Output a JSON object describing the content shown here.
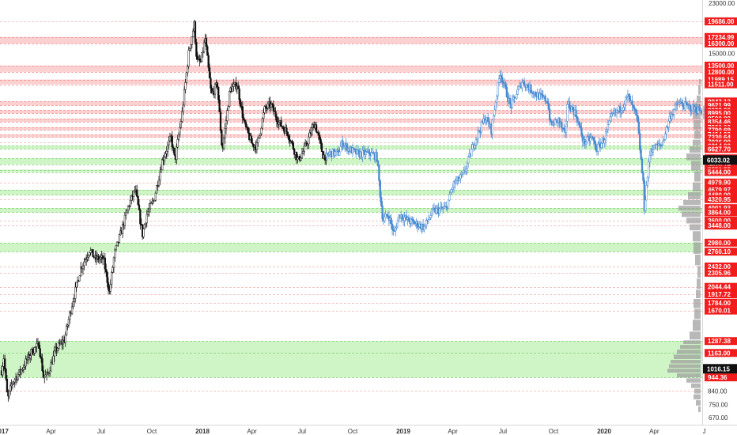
{
  "chart_data": {
    "type": "candlestick",
    "y_scale": "log",
    "ylim": [
      640,
      23500
    ],
    "x_range": [
      "2017-01-01",
      "2020-07-06"
    ],
    "x_ticks": [
      {
        "date": "2017-01-01",
        "label": "2017",
        "bold": true
      },
      {
        "date": "2017-04-01",
        "label": "Apr",
        "bold": false
      },
      {
        "date": "2017-07-01",
        "label": "Jul",
        "bold": false
      },
      {
        "date": "2017-10-01",
        "label": "Oct",
        "bold": false
      },
      {
        "date": "2018-01-01",
        "label": "2018",
        "bold": true
      },
      {
        "date": "2018-04-01",
        "label": "Apr",
        "bold": false
      },
      {
        "date": "2018-07-01",
        "label": "Jul",
        "bold": false
      },
      {
        "date": "2018-10-01",
        "label": "Oct",
        "bold": false
      },
      {
        "date": "2019-01-01",
        "label": "2019",
        "bold": true
      },
      {
        "date": "2019-04-01",
        "label": "Apr",
        "bold": false
      },
      {
        "date": "2019-07-01",
        "label": "Jul",
        "bold": false
      },
      {
        "date": "2019-10-01",
        "label": "Oct",
        "bold": false
      },
      {
        "date": "2020-01-01",
        "label": "2020",
        "bold": true
      },
      {
        "date": "2020-04-01",
        "label": "Apr",
        "bold": false
      },
      {
        "date": "2020-07-01",
        "label": "J",
        "bold": false
      }
    ],
    "y_ticks": [
      23000,
      15000,
      750,
      670
    ],
    "y_tick_labels": [
      "23000.00",
      "15000.00",
      "750.00",
      "670.00"
    ],
    "price_levels": [
      19686,
      17234.99,
      16300,
      13500,
      12800,
      11989.15,
      11511,
      9943.12,
      9621.99,
      9222,
      8995,
      8590,
      8354.46,
      7980,
      7790.69,
      7494.99,
      7330.64,
      7026.9,
      6814,
      6627.7,
      6120,
      5818.14,
      5556.55,
      5444,
      4979.9,
      4679.97,
      4480,
      4320.95,
      4001.93,
      3864,
      3600,
      3448,
      2980,
      2760.1,
      2432,
      2305.96,
      2044.44,
      1917.72,
      1784,
      1670.01,
      1287.38,
      1163,
      944.36,
      840
    ],
    "level_labels": [
      "19686.00",
      "17234.99",
      "16300.00",
      "13500.00",
      "12800.00",
      "11989.15",
      "11511.00",
      "9943.12",
      "9621.99",
      "9222.00",
      "8995.00",
      "8590.00",
      "8354.46",
      "7980.00",
      "7790.69",
      "7494.99",
      "7330.64",
      "7026.90",
      "6814.00",
      "6627.70",
      "6120.00",
      "5818.14",
      "5556.55",
      "5444.00",
      "4979.90",
      "4679.97",
      "4480.00",
      "4320.95",
      "4001.93",
      "3864.00",
      "3600.00",
      "3448.00",
      "2980.00",
      "2760.10",
      "2432.00",
      "2305.96",
      "2044.44",
      "1917.72",
      "1784.00",
      "1670.01",
      "1287.38",
      "1163.00",
      "944.36",
      "840.00"
    ],
    "level_label_colors": [
      "red",
      "red",
      "red",
      "red",
      "red",
      "red",
      "red",
      "red",
      "red",
      "red",
      "red",
      "red",
      "red",
      "red",
      "red",
      "red",
      "red",
      "red",
      "red",
      "red",
      "red",
      "red",
      "red",
      "red",
      "red",
      "red",
      "red",
      "red",
      "red",
      "red",
      "red",
      "red",
      "red",
      "red",
      "red",
      "red",
      "red",
      "red",
      "red",
      "red",
      "red",
      "red",
      "red",
      "none"
    ],
    "highlighted_levels": [
      {
        "value": 6033.02,
        "label": "6033.02"
      },
      {
        "value": 1016.15,
        "label": "1016.15"
      }
    ],
    "resistance_zones": [
      [
        16300,
        17234.99
      ],
      [
        12800,
        13500
      ],
      [
        11511,
        11989.15
      ],
      [
        9621.99,
        9943.12
      ],
      [
        8995,
        9222
      ],
      [
        8354.46,
        8590
      ],
      [
        7790.69,
        7980
      ],
      [
        7330.64,
        7494.99
      ]
    ],
    "support_zones": [
      [
        6627.7,
        6814
      ],
      [
        5818.14,
        6120
      ],
      [
        5444,
        5556.55
      ],
      [
        4480,
        4679.97
      ],
      [
        3864,
        4001.93
      ],
      [
        2760.1,
        2980
      ],
      [
        944.36,
        1287.38
      ]
    ],
    "price_path_black": [
      [
        "2017-01-01",
        1000
      ],
      [
        "2017-01-05",
        1120
      ],
      [
        "2017-01-12",
        780
      ],
      [
        "2017-01-20",
        900
      ],
      [
        "2017-02-05",
        1000
      ],
      [
        "2017-02-25",
        1180
      ],
      [
        "2017-03-10",
        1250
      ],
      [
        "2017-03-18",
        950
      ],
      [
        "2017-03-25",
        960
      ],
      [
        "2017-04-10",
        1200
      ],
      [
        "2017-04-25",
        1300
      ],
      [
        "2017-05-10",
        1800
      ],
      [
        "2017-05-25",
        2400
      ],
      [
        "2017-06-10",
        2800
      ],
      [
        "2017-06-20",
        2600
      ],
      [
        "2017-07-05",
        2600
      ],
      [
        "2017-07-16",
        1950
      ],
      [
        "2017-07-25",
        2700
      ],
      [
        "2017-08-05",
        3200
      ],
      [
        "2017-08-20",
        4100
      ],
      [
        "2017-09-01",
        4700
      ],
      [
        "2017-09-14",
        3200
      ],
      [
        "2017-09-22",
        3800
      ],
      [
        "2017-10-05",
        4300
      ],
      [
        "2017-10-20",
        6000
      ],
      [
        "2017-11-05",
        7300
      ],
      [
        "2017-11-12",
        6000
      ],
      [
        "2017-11-25",
        9000
      ],
      [
        "2017-12-07",
        15000
      ],
      [
        "2017-12-17",
        19200
      ],
      [
        "2017-12-22",
        14000
      ],
      [
        "2017-12-29",
        13900
      ],
      [
        "2018-01-06",
        17000
      ],
      [
        "2018-01-17",
        10500
      ],
      [
        "2018-01-28",
        11500
      ],
      [
        "2018-02-06",
        6500
      ],
      [
        "2018-02-20",
        11000
      ],
      [
        "2018-03-05",
        11500
      ],
      [
        "2018-03-18",
        8200
      ],
      [
        "2018-04-01",
        6900
      ],
      [
        "2018-04-10",
        6800
      ],
      [
        "2018-04-24",
        9300
      ],
      [
        "2018-05-05",
        9700
      ],
      [
        "2018-05-20",
        8300
      ],
      [
        "2018-06-05",
        7600
      ],
      [
        "2018-06-24",
        6000
      ],
      [
        "2018-07-05",
        6600
      ],
      [
        "2018-07-24",
        8300
      ],
      [
        "2018-08-08",
        6300
      ],
      [
        "2018-08-14",
        6200
      ]
    ],
    "price_path_blue": [
      [
        "2018-08-14",
        6200
      ],
      [
        "2018-08-20",
        6400
      ],
      [
        "2018-09-05",
        6400
      ],
      [
        "2018-09-12",
        7000
      ],
      [
        "2018-09-25",
        6600
      ],
      [
        "2018-10-11",
        6350
      ],
      [
        "2018-11-01",
        6400
      ],
      [
        "2018-11-14",
        6200
      ],
      [
        "2018-11-20",
        4500
      ],
      [
        "2018-11-25",
        3600
      ],
      [
        "2018-12-05",
        3800
      ],
      [
        "2018-12-15",
        3200
      ],
      [
        "2018-12-25",
        3800
      ],
      [
        "2019-01-10",
        3600
      ],
      [
        "2019-02-08",
        3400
      ],
      [
        "2019-02-24",
        3900
      ],
      [
        "2019-03-20",
        4000
      ],
      [
        "2019-04-02",
        4900
      ],
      [
        "2019-04-20",
        5300
      ],
      [
        "2019-05-12",
        7200
      ],
      [
        "2019-05-30",
        8700
      ],
      [
        "2019-06-10",
        7800
      ],
      [
        "2019-06-26",
        12800
      ],
      [
        "2019-07-15",
        9500
      ],
      [
        "2019-08-05",
        11800
      ],
      [
        "2019-09-01",
        10500
      ],
      [
        "2019-09-20",
        10000
      ],
      [
        "2019-09-26",
        8100
      ],
      [
        "2019-10-10",
        8500
      ],
      [
        "2019-10-22",
        7400
      ],
      [
        "2019-10-26",
        9800
      ],
      [
        "2019-11-10",
        9000
      ],
      [
        "2019-11-25",
        7000
      ],
      [
        "2019-12-10",
        7300
      ],
      [
        "2019-12-18",
        6600
      ],
      [
        "2020-01-01",
        7200
      ],
      [
        "2020-01-15",
        8800
      ],
      [
        "2020-02-01",
        9400
      ],
      [
        "2020-02-13",
        10400
      ],
      [
        "2020-03-01",
        8600
      ],
      [
        "2020-03-12",
        4900
      ],
      [
        "2020-03-13",
        3850
      ],
      [
        "2020-03-25",
        6600
      ],
      [
        "2020-04-15",
        6900
      ],
      [
        "2020-04-30",
        8800
      ],
      [
        "2020-05-15",
        9800
      ],
      [
        "2020-06-01",
        9500
      ],
      [
        "2020-06-25",
        9200
      ],
      [
        "2020-07-05",
        9100
      ]
    ],
    "volume_profile": [
      [
        700,
        3
      ],
      [
        740,
        6
      ],
      [
        780,
        9
      ],
      [
        820,
        8
      ],
      [
        860,
        12
      ],
      [
        900,
        18
      ],
      [
        940,
        30
      ],
      [
        980,
        42
      ],
      [
        1020,
        40
      ],
      [
        1060,
        38
      ],
      [
        1100,
        34
      ],
      [
        1150,
        30
      ],
      [
        1200,
        26
      ],
      [
        1250,
        22
      ],
      [
        1300,
        14
      ],
      [
        1400,
        10
      ],
      [
        1550,
        8
      ],
      [
        1700,
        9
      ],
      [
        1850,
        6
      ],
      [
        2000,
        5
      ],
      [
        2200,
        4
      ],
      [
        2450,
        7
      ],
      [
        2700,
        9
      ],
      [
        3000,
        10
      ],
      [
        3300,
        14
      ],
      [
        3500,
        18
      ],
      [
        3700,
        24
      ],
      [
        3900,
        28
      ],
      [
        4100,
        22
      ],
      [
        4300,
        16
      ],
      [
        4600,
        10
      ],
      [
        5000,
        8
      ],
      [
        5500,
        12
      ],
      [
        6000,
        18
      ],
      [
        6400,
        14
      ],
      [
        6800,
        10
      ],
      [
        7200,
        8
      ],
      [
        7800,
        9
      ],
      [
        8500,
        10
      ],
      [
        9200,
        8
      ],
      [
        9800,
        5
      ],
      [
        10500,
        3
      ],
      [
        11500,
        2
      ]
    ],
    "colors": {
      "resistance_band": "#fbd0d0",
      "resistance_line": "#f28b8b",
      "support_band": "#cff5c6",
      "support_line": "#7fcf70",
      "neutral_line": "#f0b4b4",
      "level_label_red": "#f21c1c",
      "highlight_label": "#111111",
      "candles_black": "#111111",
      "candles_blue": "#4a8bd0",
      "volume_profile": "#9a9a9a",
      "axis_text": "#333333"
    }
  }
}
